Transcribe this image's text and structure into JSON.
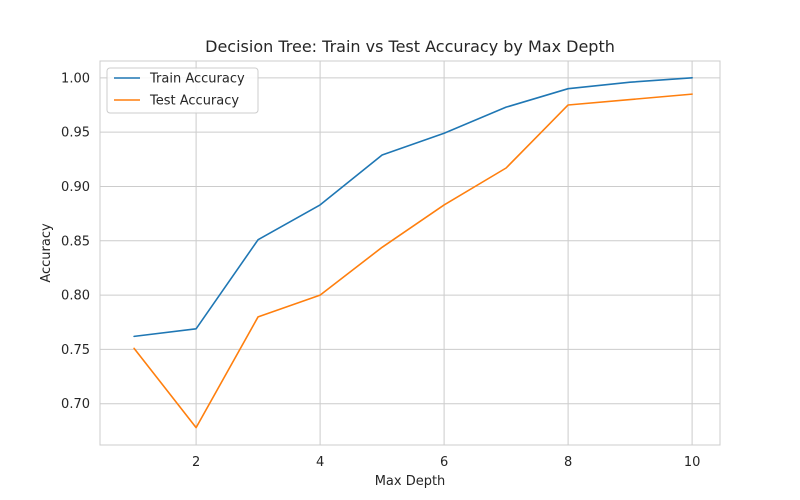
{
  "chart_data": {
    "type": "line",
    "title": "Decision Tree: Train vs Test Accuracy by Max Depth",
    "xlabel": "Max Depth",
    "ylabel": "Accuracy",
    "x": [
      1,
      2,
      3,
      4,
      5,
      6,
      7,
      8,
      9,
      10
    ],
    "xlim": [
      0.45,
      10.45
    ],
    "ylim": [
      0.662,
      1.0155
    ],
    "xticks": [
      2,
      4,
      6,
      8,
      10
    ],
    "xtick_labels": [
      "2",
      "4",
      "6",
      "8",
      "10"
    ],
    "yticks": [
      0.7,
      0.75,
      0.8,
      0.85,
      0.9,
      0.95,
      1.0
    ],
    "ytick_labels": [
      "0.70",
      "0.75",
      "0.80",
      "0.85",
      "0.90",
      "0.95",
      "1.00"
    ],
    "grid": true,
    "legend_position": "top-left",
    "series": [
      {
        "name": "Train Accuracy",
        "color": "#1f77b4",
        "values": [
          0.762,
          0.769,
          0.851,
          0.883,
          0.929,
          0.949,
          0.973,
          0.99,
          0.996,
          1.0
        ]
      },
      {
        "name": "Test Accuracy",
        "color": "#ff7f0e",
        "values": [
          0.751,
          0.678,
          0.78,
          0.8,
          0.844,
          0.883,
          0.917,
          0.975,
          0.98,
          0.985
        ]
      }
    ]
  }
}
